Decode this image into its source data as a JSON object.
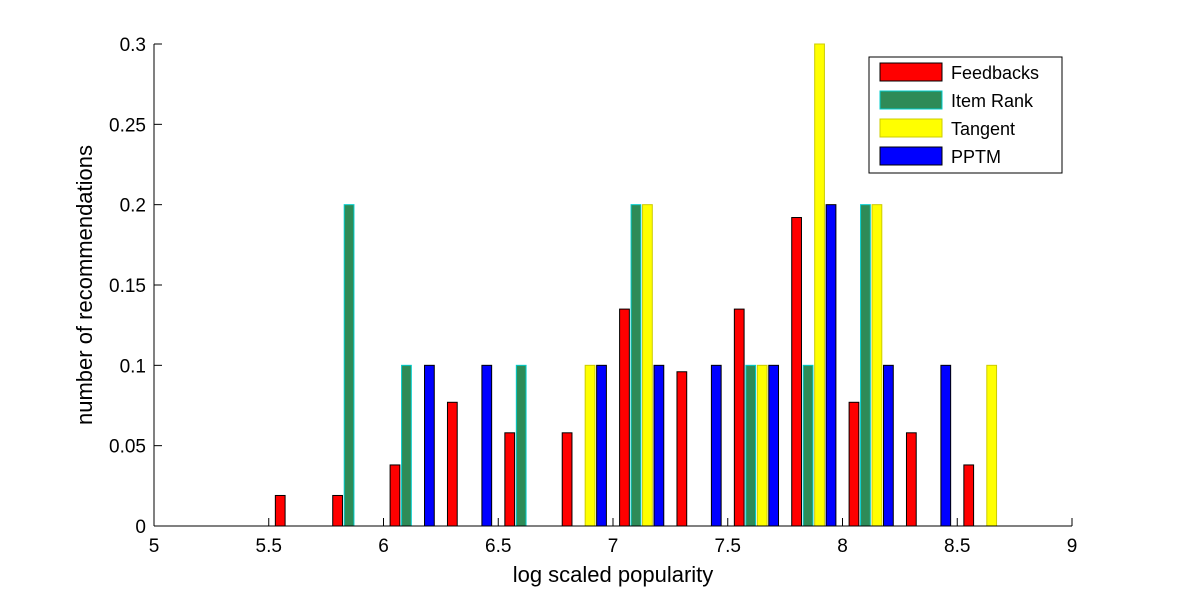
{
  "chart_data": {
    "type": "bar",
    "title": "",
    "xlabel": "log scaled popularity",
    "ylabel": "number of recommendations",
    "xlim": [
      5,
      9
    ],
    "ylim": [
      0,
      0.3
    ],
    "xticks": [
      5,
      5.5,
      6,
      6.5,
      7,
      7.5,
      8,
      8.5,
      9
    ],
    "xtick_labels": [
      "5",
      "5.5",
      "6",
      "6.5",
      "7",
      "7.5",
      "8",
      "8.5",
      "9"
    ],
    "yticks": [
      0,
      0.05,
      0.1,
      0.15,
      0.2,
      0.25,
      0.3
    ],
    "ytick_labels": [
      "0",
      "0.05",
      "0.1",
      "0.15",
      "0.2",
      "0.25",
      "0.3"
    ],
    "grid": false,
    "legend_position": "top-right",
    "bin_centers": [
      5.125,
      5.375,
      5.625,
      5.875,
      6.125,
      6.375,
      6.625,
      6.875,
      7.125,
      7.375,
      7.625,
      7.875,
      8.125,
      8.375,
      8.625,
      8.875
    ],
    "series": [
      {
        "name": "Feedbacks",
        "color": "#ff0000",
        "edge": "#000000",
        "values": [
          0,
          0,
          0.019,
          0.019,
          0.038,
          0.077,
          0.058,
          0.058,
          0.135,
          0.096,
          0.135,
          0.192,
          0.077,
          0.058,
          0.038,
          0
        ]
      },
      {
        "name": "Item Rank",
        "color": "#2e8b57",
        "edge": "#00cccc",
        "values": [
          0,
          0,
          0,
          0.2,
          0.1,
          0,
          0.1,
          0,
          0.2,
          0,
          0.1,
          0.1,
          0.2,
          0,
          0,
          0
        ]
      },
      {
        "name": "Tangent",
        "color": "#ffff00",
        "edge": "#cccc00",
        "values": [
          0,
          0,
          0,
          0,
          0,
          0,
          0,
          0.1,
          0.2,
          0,
          0.1,
          0.3,
          0.2,
          0,
          0.1,
          0
        ]
      },
      {
        "name": "PPTM",
        "color": "#0000ff",
        "edge": "#000000",
        "values": [
          0,
          0,
          0,
          0,
          0.1,
          0.1,
          0,
          0.1,
          0.1,
          0.1,
          0.1,
          0.2,
          0.1,
          0.1,
          0,
          0
        ]
      }
    ]
  }
}
